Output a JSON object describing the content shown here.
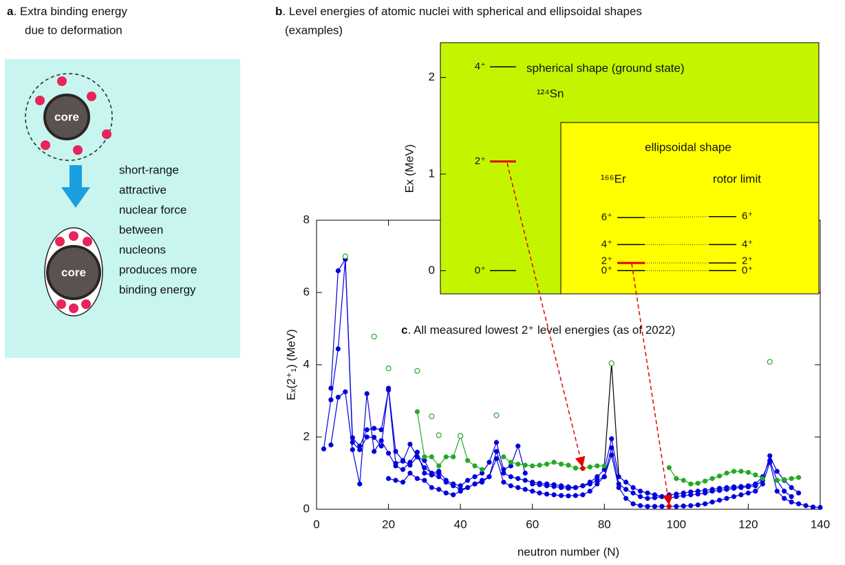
{
  "panel_a": {
    "label": "a",
    "title": [
      ". Extra binding energy",
      "due to deformation"
    ],
    "core_labels": [
      "core",
      "core"
    ],
    "text": [
      "short-range",
      "attractive",
      "nuclear force",
      "between",
      "nucleons",
      "produces more",
      "binding energy"
    ]
  },
  "chart_data": [
    {
      "type": "levels",
      "label": "b",
      "title": [
        ". Level energies of atomic nuclei with spherical and ellipsoidal shapes",
        "(examples)"
      ],
      "ylabel": "Ex (MeV)",
      "ylim": [
        -0.24,
        2.36
      ],
      "yticks": [
        0,
        1,
        2
      ],
      "groups": [
        {
          "name": "¹²⁴Sn",
          "note": "spherical shape (ground state)",
          "labels": [
            "0⁺",
            "2⁺",
            "4⁺"
          ],
          "values": [
            0,
            1.13,
            2.11
          ],
          "colors": [
            "#000000",
            "#e00000",
            "#000000"
          ]
        },
        {
          "name": "¹⁶⁶Er",
          "note": "ellipsoidal shape",
          "labels": [
            "0⁺",
            "2⁺",
            "4⁺",
            "6⁺"
          ],
          "values": [
            0,
            0.08,
            0.27,
            0.55
          ],
          "colors": [
            "#000000",
            "#e00000",
            "#000000",
            "#000000"
          ]
        },
        {
          "name": "rotor limit",
          "labels": [
            "0⁺",
            "2⁺",
            "4⁺",
            "6⁺"
          ],
          "values": [
            0,
            0.08,
            0.27,
            0.56
          ],
          "colors": [
            "#000000",
            "#000000",
            "#000000",
            "#000000"
          ]
        }
      ]
    },
    {
      "type": "line",
      "label": "c",
      "title": ". All measured lowest 2⁺ level energies (as of 2022)",
      "xlabel": "neutron number (N)",
      "ylabel": "Eₓ(2⁺₁) (MeV)",
      "xlim": [
        0,
        140
      ],
      "xticks": [
        0,
        20,
        40,
        60,
        80,
        100,
        120,
        140
      ],
      "ylim": [
        0,
        8
      ],
      "yticks": [
        0,
        2,
        4,
        6,
        8
      ],
      "series": [
        {
          "color": "#0000dd",
          "x": [
            4,
            6,
            8,
            10,
            12,
            14,
            16,
            18,
            20,
            22,
            24,
            26,
            28,
            30,
            32,
            34
          ],
          "values": [
            3.35,
            6.6,
            6.92,
            1.98,
            1.75,
            2.2,
            2.24,
            2.2,
            3.3,
            1.27,
            1.33,
            1.8,
            1.45,
            1.35,
            0.95,
            1.0
          ]
        },
        {
          "color": "#0000dd",
          "x": [
            2,
            4,
            6,
            8,
            10,
            12,
            14,
            16,
            18,
            20,
            22,
            24,
            26,
            28,
            30,
            32,
            34,
            36,
            38,
            40,
            42,
            44,
            46,
            48,
            50,
            52,
            54,
            56,
            58
          ],
          "values": [
            1.67,
            3.03,
            4.44,
            6.92,
            1.85,
            1.65,
            2.0,
            1.99,
            1.75,
            3.35,
            1.6,
            1.35,
            1.22,
            1.45,
            1.15,
            1.0,
            1.05,
            0.8,
            0.7,
            0.65,
            0.8,
            0.9,
            1.0,
            1.3,
            1.85,
            1.1,
            1.2,
            1.75,
            1.0
          ]
        },
        {
          "color": "#0000dd",
          "x": [
            4,
            6,
            8,
            10,
            12,
            14,
            16,
            18,
            20,
            22,
            24,
            26,
            28,
            30,
            32,
            34,
            36,
            38,
            40,
            42,
            44,
            46,
            48,
            50,
            52,
            54,
            56,
            58,
            60,
            62,
            64,
            66,
            68,
            70,
            72,
            74,
            76,
            78,
            80,
            82,
            84,
            86,
            88,
            90,
            92,
            94,
            96,
            98,
            100,
            102,
            104,
            106,
            108,
            110,
            112,
            114,
            116,
            118,
            120,
            122,
            124,
            126,
            128,
            130,
            132
          ],
          "values": [
            1.78,
            3.1,
            3.25,
            1.65,
            0.7,
            3.2,
            1.6,
            1.9,
            1.55,
            1.2,
            1.1,
            1.3,
            1.58,
            1.0,
            0.95,
            0.9,
            0.75,
            0.65,
            0.55,
            0.6,
            0.7,
            0.75,
            0.9,
            1.6,
            1.0,
            0.9,
            0.85,
            0.8,
            0.75,
            0.72,
            0.7,
            0.68,
            0.65,
            0.62,
            0.6,
            0.65,
            0.7,
            0.8,
            0.9,
            1.7,
            0.7,
            0.55,
            0.45,
            0.35,
            0.3,
            0.32,
            0.35,
            0.4,
            0.42,
            0.45,
            0.48,
            0.5,
            0.52,
            0.55,
            0.58,
            0.6,
            0.62,
            0.63,
            0.65,
            0.7,
            0.9,
            1.35,
            0.8,
            0.5,
            0.35
          ]
        },
        {
          "color": "#0000dd",
          "x": [
            20,
            22,
            24,
            26,
            28,
            30,
            32,
            34,
            36,
            38,
            40,
            42,
            44,
            46,
            48,
            50,
            52,
            54,
            56,
            58,
            60,
            62,
            64,
            66,
            68,
            70,
            72,
            74,
            76,
            78,
            80,
            82,
            84,
            86,
            88,
            90,
            92,
            94,
            96,
            98,
            100,
            102,
            104,
            106,
            108,
            110,
            112,
            114,
            116,
            118,
            120,
            122,
            124,
            126,
            128,
            130,
            132,
            134,
            136,
            138,
            140
          ],
          "values": [
            0.85,
            0.8,
            0.75,
            1.0,
            0.85,
            0.8,
            0.6,
            0.55,
            0.45,
            0.4,
            0.5,
            0.6,
            0.7,
            0.8,
            0.9,
            1.4,
            0.75,
            0.65,
            0.6,
            0.55,
            0.5,
            0.45,
            0.42,
            0.4,
            0.38,
            0.37,
            0.38,
            0.4,
            0.5,
            0.7,
            0.9,
            1.5,
            0.6,
            0.3,
            0.15,
            0.1,
            0.08,
            0.08,
            0.08,
            0.08,
            0.08,
            0.09,
            0.1,
            0.12,
            0.15,
            0.2,
            0.25,
            0.3,
            0.35,
            0.4,
            0.45,
            0.5,
            0.7,
            1.3,
            0.5,
            0.3,
            0.2,
            0.15,
            0.1,
            0.06,
            0.05
          ]
        },
        {
          "color": "#0000dd",
          "x": [
            60,
            62,
            64,
            66,
            68,
            70,
            72,
            74,
            76,
            78,
            80,
            82,
            84,
            86,
            88,
            90,
            92,
            94,
            96,
            98,
            100,
            102,
            104,
            106,
            108,
            110,
            112,
            114,
            116,
            118,
            120,
            122,
            124,
            126,
            128,
            130,
            132,
            134
          ],
          "values": [
            0.7,
            0.68,
            0.65,
            0.63,
            0.6,
            0.58,
            0.6,
            0.65,
            0.75,
            0.9,
            1.1,
            1.95,
            0.9,
            0.75,
            0.6,
            0.5,
            0.45,
            0.4,
            0.35,
            0.3,
            0.35,
            0.38,
            0.4,
            0.42,
            0.45,
            0.5,
            0.52,
            0.55,
            0.58,
            0.6,
            0.62,
            0.65,
            0.8,
            1.48,
            1.05,
            0.8,
            0.6,
            0.45
          ]
        },
        {
          "color": "#000000",
          "marker": "none",
          "x": [
            80,
            82,
            84
          ],
          "values": [
            1.2,
            4.04,
            0.95
          ]
        },
        {
          "color": "#22aa22",
          "x": [
            28,
            30,
            32,
            34,
            36,
            38,
            40,
            42,
            44,
            46
          ],
          "values": [
            2.7,
            1.45,
            1.45,
            1.2,
            1.45,
            1.45,
            2.03,
            1.35,
            1.2,
            1.1
          ]
        },
        {
          "color": "#22aa22",
          "x": [
            52,
            54,
            56,
            58,
            60,
            62,
            64,
            66,
            68,
            70,
            72,
            74,
            76,
            78,
            80
          ],
          "values": [
            1.45,
            1.3,
            1.25,
            1.22,
            1.2,
            1.22,
            1.25,
            1.3,
            1.25,
            1.22,
            1.14,
            1.13,
            1.17,
            1.2,
            1.2
          ]
        },
        {
          "color": "#22aa22",
          "x": [
            98,
            100,
            102,
            104,
            106,
            108,
            110,
            112,
            114,
            116,
            118,
            120,
            122,
            124,
            126,
            128,
            130,
            132,
            134
          ],
          "values": [
            1.15,
            0.85,
            0.8,
            0.7,
            0.72,
            0.78,
            0.85,
            0.92,
            1.0,
            1.05,
            1.05,
            1.02,
            0.95,
            0.85,
            null,
            0.8,
            0.82,
            0.85,
            0.88
          ]
        },
        {
          "color": "#22aa22",
          "marker": "open",
          "line": false,
          "x": [
            8,
            16,
            20,
            28,
            32,
            34,
            40,
            50,
            82,
            126
          ],
          "values": [
            7.0,
            4.78,
            3.9,
            3.83,
            2.57,
            2.05,
            2.03,
            2.6,
            4.04,
            4.08
          ]
        },
        {
          "color": "#e00000",
          "line": false,
          "x": [
            74,
            98
          ],
          "values": [
            1.13,
            0.08
          ]
        }
      ]
    }
  ]
}
